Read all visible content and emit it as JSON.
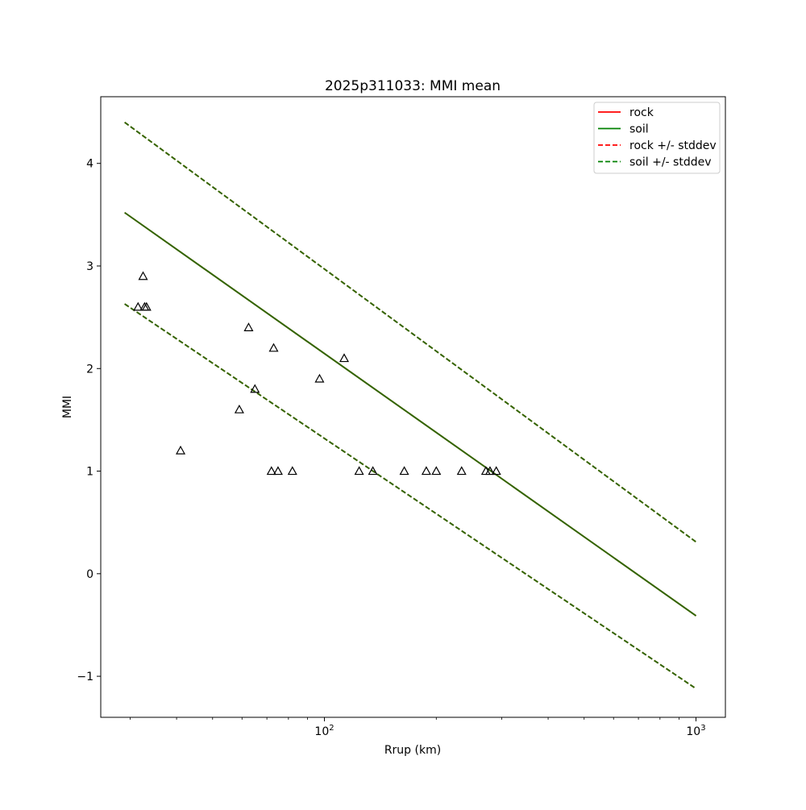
{
  "chart_data": {
    "type": "line",
    "title": "2025p311033: MMI mean",
    "xlabel": "Rrup (km)",
    "ylabel": "MMI",
    "xscale": "log",
    "xlim": [
      25,
      1200
    ],
    "ylim": [
      -1.4,
      4.65
    ],
    "x_ticks": [
      {
        "value": 100,
        "base": "10",
        "exp": "2"
      },
      {
        "value": 1000,
        "base": "10",
        "exp": "3"
      }
    ],
    "x_minor_ticks": [
      30,
      40,
      50,
      60,
      70,
      80,
      90,
      200,
      300,
      400,
      500,
      600,
      700,
      800,
      900
    ],
    "y_ticks": [
      {
        "value": -1,
        "label": "−1"
      },
      {
        "value": 0,
        "label": "0"
      },
      {
        "value": 1,
        "label": "1"
      },
      {
        "value": 2,
        "label": "2"
      },
      {
        "value": 3,
        "label": "3"
      },
      {
        "value": 4,
        "label": "4"
      }
    ],
    "grid": false,
    "legend_position": "top-right",
    "series": [
      {
        "name": "rock",
        "color": "#ff0000",
        "style": "solid",
        "x": [
          29,
          1000
        ],
        "y": [
          3.52,
          -0.41
        ]
      },
      {
        "name": "soil",
        "color": "#008000",
        "style": "solid",
        "x": [
          29,
          1000
        ],
        "y": [
          3.52,
          -0.41
        ]
      },
      {
        "name": "rock +/- stddev",
        "color": "#ff0000",
        "style": "dashed",
        "x": [
          29,
          1000
        ],
        "y": [
          4.4,
          0.31
        ],
        "y2": [
          2.63,
          -1.12
        ]
      },
      {
        "name": "soil +/- stddev",
        "color": "#008000",
        "style": "dashed",
        "x": [
          29,
          1000
        ],
        "y": [
          4.4,
          0.31
        ],
        "y2": [
          2.63,
          -1.12
        ]
      }
    ],
    "overlay_color": "#336600",
    "observations": {
      "marker": "triangle",
      "color": "#000000",
      "points": [
        {
          "x": 31.5,
          "y": 2.6
        },
        {
          "x": 32.5,
          "y": 2.9
        },
        {
          "x": 32.8,
          "y": 2.6
        },
        {
          "x": 33.2,
          "y": 2.6
        },
        {
          "x": 41,
          "y": 1.2
        },
        {
          "x": 59,
          "y": 1.6
        },
        {
          "x": 62.5,
          "y": 2.4
        },
        {
          "x": 65,
          "y": 1.8
        },
        {
          "x": 72,
          "y": 1.0
        },
        {
          "x": 73,
          "y": 2.2
        },
        {
          "x": 75,
          "y": 1.0
        },
        {
          "x": 82,
          "y": 1.0
        },
        {
          "x": 97,
          "y": 1.9
        },
        {
          "x": 113,
          "y": 2.1
        },
        {
          "x": 124,
          "y": 1.0
        },
        {
          "x": 135,
          "y": 1.0
        },
        {
          "x": 164,
          "y": 1.0
        },
        {
          "x": 188,
          "y": 1.0
        },
        {
          "x": 200,
          "y": 1.0
        },
        {
          "x": 234,
          "y": 1.0
        },
        {
          "x": 272,
          "y": 1.0
        },
        {
          "x": 279,
          "y": 1.0
        },
        {
          "x": 290,
          "y": 1.0
        }
      ]
    }
  }
}
